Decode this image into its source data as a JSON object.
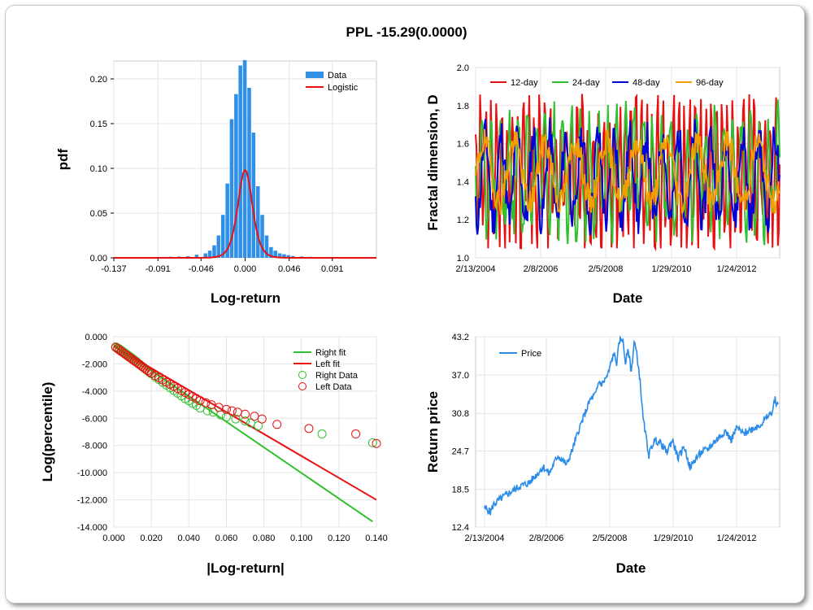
{
  "title": "PPL -15.29(0.0000)",
  "colors": {
    "data_bar": "#3090e8",
    "logistic": "#e81010",
    "d12": "#e81010",
    "d24": "#30c030",
    "d48": "#0000d8",
    "d96": "#f0a000",
    "price": "#2a8ce8",
    "right": "#30c030",
    "left": "#e81010",
    "grid": "#e4e4e4"
  },
  "chart_data": [
    {
      "type": "bar",
      "title": "",
      "xlabel": "Log-return",
      "ylabel": "pdf",
      "xlim": [
        -0.137,
        0.137
      ],
      "ylim": [
        0,
        0.22
      ],
      "xticks": [
        "-0.137",
        "-0.091",
        "-0.046",
        "0.000",
        "0.046",
        "0.091"
      ],
      "xtick_values": [
        -0.137,
        -0.091,
        -0.046,
        0.0,
        0.046,
        0.091
      ],
      "yticks": [
        "0.00",
        "0.05",
        "0.10",
        "0.15",
        "0.20"
      ],
      "ytick_values": [
        0,
        0.05,
        0.1,
        0.15,
        0.2
      ],
      "legend": [
        "Data",
        "Logistic"
      ],
      "bar_width": 0.00456,
      "bars_x": [
        -0.1232,
        -0.1141,
        -0.1049,
        -0.0958,
        -0.0867,
        -0.0776,
        -0.0684,
        -0.0593,
        -0.0502,
        -0.041,
        -0.0365,
        -0.0319,
        -0.0274,
        -0.0228,
        -0.0182,
        -0.0137,
        -0.0091,
        -0.0046,
        0.0,
        0.0046,
        0.0091,
        0.0137,
        0.0182,
        0.0228,
        0.0274,
        0.0319,
        0.0365,
        0.041,
        0.0456,
        0.0502,
        0.0593,
        0.0684,
        0.0776,
        0.0867,
        0.0958,
        0.1049,
        0.1141
      ],
      "bars_y": [
        0.0005,
        0.0004,
        0.0006,
        0.0008,
        0.0009,
        0.0012,
        0.0014,
        0.0018,
        0.0035,
        0.005,
        0.008,
        0.014,
        0.025,
        0.048,
        0.083,
        0.155,
        0.183,
        0.215,
        0.221,
        0.19,
        0.14,
        0.08,
        0.048,
        0.025,
        0.012,
        0.008,
        0.005,
        0.004,
        0.003,
        0.002,
        0.0015,
        0.0011,
        0.0008,
        0.0006,
        0.0004,
        0.0003,
        0.0002
      ],
      "logistic_scale": 0.0051
    },
    {
      "type": "line",
      "title": "",
      "xlabel": "Date",
      "ylabel": "Fractal dimension, D",
      "ylim": [
        1.0,
        2.0
      ],
      "xticks": [
        "2/13/2004",
        "2/8/2006",
        "2/5/2008",
        "1/29/2010",
        "1/24/2012"
      ],
      "yticks": [
        "1.0",
        "1.2",
        "1.4",
        "1.6",
        "1.8",
        "2.0"
      ],
      "ytick_values": [
        1.0,
        1.2,
        1.4,
        1.6,
        1.8,
        2.0
      ],
      "series": [
        {
          "name": "12-day",
          "mean": 1.45,
          "amp": 0.32,
          "period": 6,
          "seed": 3
        },
        {
          "name": "24-day",
          "mean": 1.45,
          "amp": 0.27,
          "period": 10,
          "seed": 7
        },
        {
          "name": "48-day",
          "mean": 1.42,
          "amp": 0.22,
          "period": 18,
          "seed": 11
        },
        {
          "name": "96-day",
          "mean": 1.45,
          "amp": 0.16,
          "period": 34,
          "seed": 19
        }
      ]
    },
    {
      "type": "scatter",
      "title": "",
      "xlabel": "|Log-return|",
      "ylabel": "Log(percentile)",
      "xlim": [
        0,
        0.14
      ],
      "ylim": [
        -14,
        0
      ],
      "xticks": [
        "0.000",
        "0.020",
        "0.040",
        "0.060",
        "0.080",
        "0.100",
        "0.120",
        "0.140"
      ],
      "xtick_values": [
        0,
        0.02,
        0.04,
        0.06,
        0.08,
        0.1,
        0.12,
        0.14
      ],
      "yticks": [
        "0.000",
        "-2.000",
        "-4.000",
        "-6.000",
        "-8.000",
        "-10.000",
        "-12.000",
        "-14.000"
      ],
      "ytick_values": [
        0,
        -2,
        -4,
        -6,
        -8,
        -10,
        -12,
        -14
      ],
      "legend": [
        "Right fit",
        "Left fit",
        "Right Data",
        "Left Data"
      ],
      "right_fit": {
        "x": [
          0,
          0.138
        ],
        "y": [
          -0.6,
          -13.6
        ]
      },
      "left_fit": {
        "x": [
          0,
          0.14
        ],
        "y": [
          -0.7,
          -12.0
        ]
      },
      "right_data": {
        "x": [
          0.001,
          0.002,
          0.003,
          0.004,
          0.005,
          0.006,
          0.007,
          0.008,
          0.009,
          0.01,
          0.011,
          0.012,
          0.013,
          0.014,
          0.015,
          0.016,
          0.017,
          0.018,
          0.019,
          0.02,
          0.022,
          0.024,
          0.026,
          0.028,
          0.03,
          0.032,
          0.034,
          0.036,
          0.038,
          0.04,
          0.042,
          0.044,
          0.046,
          0.05,
          0.053,
          0.057,
          0.06,
          0.065,
          0.07,
          0.073,
          0.077,
          0.111,
          0.138
        ],
        "y": [
          -0.75,
          -0.82,
          -0.9,
          -1.0,
          -1.1,
          -1.2,
          -1.3,
          -1.4,
          -1.5,
          -1.6,
          -1.72,
          -1.82,
          -1.95,
          -2.05,
          -2.18,
          -2.28,
          -2.4,
          -2.5,
          -2.62,
          -2.72,
          -2.95,
          -3.15,
          -3.35,
          -3.55,
          -3.75,
          -3.95,
          -4.15,
          -4.35,
          -4.55,
          -4.7,
          -4.9,
          -5.05,
          -5.25,
          -5.45,
          -5.55,
          -5.75,
          -5.9,
          -6.05,
          -6.2,
          -6.35,
          -6.55,
          -7.15,
          -7.8
        ]
      },
      "left_data": {
        "x": [
          0.001,
          0.002,
          0.003,
          0.004,
          0.005,
          0.006,
          0.007,
          0.008,
          0.009,
          0.01,
          0.011,
          0.012,
          0.013,
          0.014,
          0.015,
          0.016,
          0.017,
          0.018,
          0.019,
          0.02,
          0.022,
          0.024,
          0.026,
          0.028,
          0.03,
          0.032,
          0.034,
          0.036,
          0.038,
          0.04,
          0.042,
          0.044,
          0.046,
          0.049,
          0.052,
          0.056,
          0.06,
          0.063,
          0.066,
          0.07,
          0.075,
          0.079,
          0.087,
          0.104,
          0.129,
          0.14
        ],
        "y": [
          -0.78,
          -0.88,
          -0.98,
          -1.08,
          -1.18,
          -1.28,
          -1.38,
          -1.48,
          -1.58,
          -1.68,
          -1.78,
          -1.88,
          -1.98,
          -2.08,
          -2.18,
          -2.28,
          -2.38,
          -2.48,
          -2.58,
          -2.68,
          -2.85,
          -3.02,
          -3.18,
          -3.35,
          -3.5,
          -3.65,
          -3.8,
          -3.95,
          -4.1,
          -4.25,
          -4.4,
          -4.55,
          -4.7,
          -4.85,
          -5.0,
          -5.2,
          -5.35,
          -5.45,
          -5.55,
          -5.7,
          -5.85,
          -6.05,
          -6.45,
          -6.75,
          -7.15,
          -7.85
        ]
      }
    },
    {
      "type": "line",
      "title": "",
      "xlabel": "Date",
      "ylabel": "Return price",
      "ylim": [
        12.4,
        43.2
      ],
      "xticks": [
        "2/13/2004",
        "2/8/2006",
        "2/5/2008",
        "1/29/2010",
        "1/24/2012"
      ],
      "yticks": [
        "12.4",
        "18.5",
        "24.7",
        "30.8",
        "37.0",
        "43.2"
      ],
      "ytick_values": [
        12.4,
        18.5,
        24.7,
        30.8,
        37.0,
        43.2
      ],
      "series": [
        {
          "name": "Price",
          "x": [
            0.0,
            0.01,
            0.02,
            0.03,
            0.05,
            0.08,
            0.12,
            0.15,
            0.18,
            0.2,
            0.22,
            0.25,
            0.28,
            0.3,
            0.32,
            0.34,
            0.36,
            0.38,
            0.39,
            0.4,
            0.42,
            0.44,
            0.45,
            0.46,
            0.47,
            0.48,
            0.49,
            0.5,
            0.51,
            0.52,
            0.53,
            0.54,
            0.55,
            0.56,
            0.57,
            0.58,
            0.6,
            0.62,
            0.64,
            0.66,
            0.68,
            0.7,
            0.72,
            0.74,
            0.76,
            0.78,
            0.8,
            0.82,
            0.84,
            0.86,
            0.88,
            0.9,
            0.92,
            0.94,
            0.96,
            0.98,
            0.99,
            1.0
          ],
          "y": [
            15.5,
            15.2,
            14.8,
            16.0,
            16.8,
            17.8,
            19.0,
            19.5,
            21.0,
            22.2,
            21.0,
            24.0,
            22.5,
            25.0,
            28.0,
            30.5,
            33.0,
            34.0,
            36.0,
            35.5,
            37.0,
            40.5,
            39.0,
            42.5,
            43.0,
            39.0,
            41.0,
            37.5,
            42.5,
            40.0,
            36.0,
            30.0,
            27.0,
            24.0,
            25.5,
            26.5,
            26.0,
            24.5,
            26.5,
            23.5,
            25.5,
            22.0,
            23.5,
            24.5,
            25.0,
            26.0,
            27.0,
            28.0,
            26.5,
            28.5,
            27.5,
            28.0,
            28.5,
            29.0,
            30.0,
            31.0,
            33.0,
            32.0
          ]
        }
      ]
    }
  ]
}
